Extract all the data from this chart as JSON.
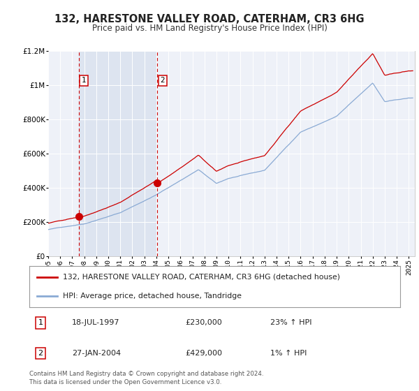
{
  "title": "132, HARESTONE VALLEY ROAD, CATERHAM, CR3 6HG",
  "subtitle": "Price paid vs. HM Land Registry's House Price Index (HPI)",
  "sale1_date": "18-JUL-1997",
  "sale1_price": 230000,
  "sale1_hpi": "23% ↑ HPI",
  "sale1_label": "1",
  "sale1_x": 1997.54,
  "sale2_date": "27-JAN-2004",
  "sale2_price": 429000,
  "sale2_hpi": "1% ↑ HPI",
  "sale2_label": "2",
  "sale2_x": 2004.07,
  "legend_line1": "132, HARESTONE VALLEY ROAD, CATERHAM, CR3 6HG (detached house)",
  "legend_line2": "HPI: Average price, detached house, Tandridge",
  "footer": "Contains HM Land Registry data © Crown copyright and database right 2024.\nThis data is licensed under the Open Government Licence v3.0.",
  "plot_bg_color": "#eef1f8",
  "shade_color": "#dde4f0",
  "hpi_line_color": "#8aaad4",
  "price_line_color": "#cc0000",
  "dashed_line_color": "#cc0000",
  "ylim_max": 1200000,
  "xlim_start": 1995.0,
  "xlim_end": 2025.5
}
